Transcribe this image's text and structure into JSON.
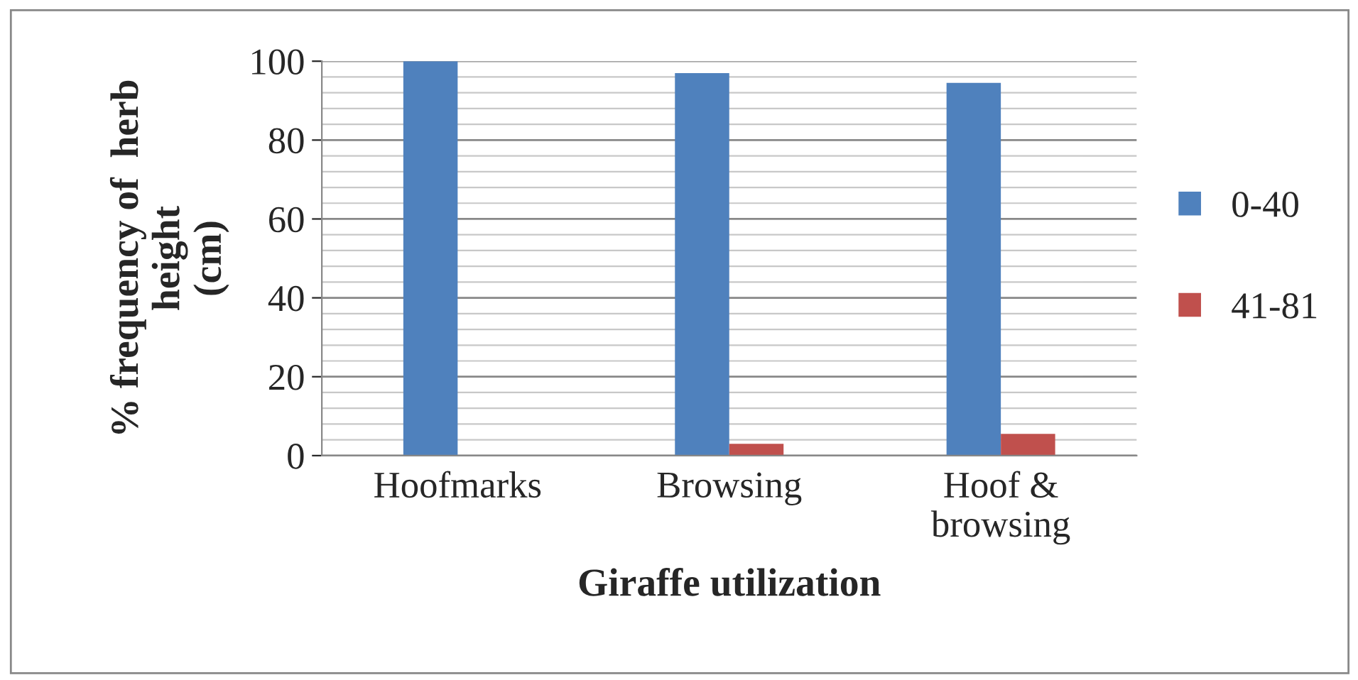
{
  "chart_data": {
    "type": "bar",
    "xlabel": "Giraffe utilization",
    "ylabel": "% frequency of  herb\nheight\n(cm)",
    "categories": [
      "Hoofmarks",
      "Browsing",
      "Hoof &\nbrowsing"
    ],
    "series": [
      {
        "name": "0-40",
        "color": "#4f81bd",
        "values": [
          100,
          97,
          94.5
        ]
      },
      {
        "name": "41-81",
        "color": "#c0504d",
        "values": [
          null,
          3,
          5.5
        ]
      }
    ],
    "ylim": [
      0,
      100
    ],
    "yticks": [
      0,
      20,
      40,
      60,
      80,
      100
    ],
    "grid": "y",
    "legend": "right"
  }
}
